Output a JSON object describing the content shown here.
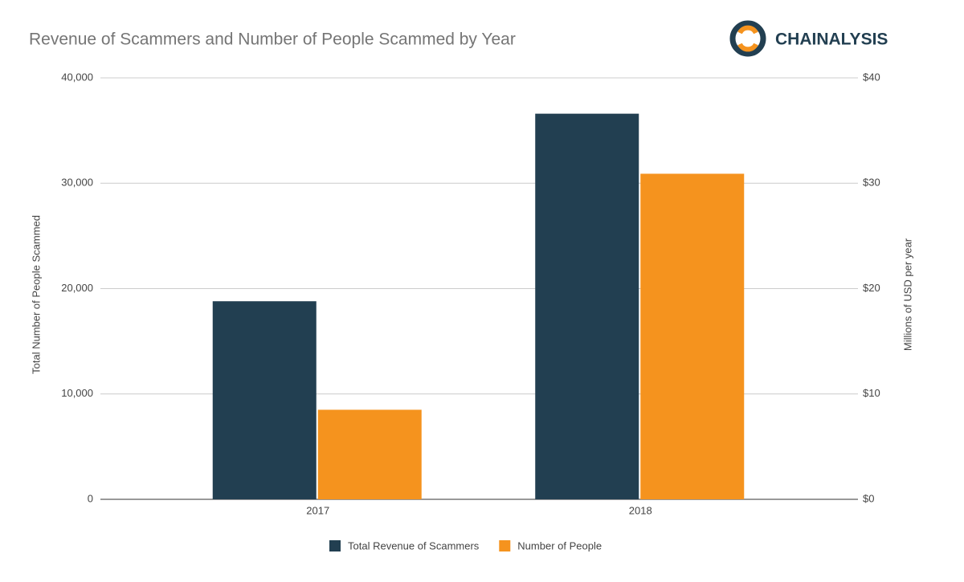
{
  "brand": "CHAINALYSIS",
  "chart_data": {
    "type": "bar",
    "title": "Revenue of Scammers and Number of People Scammed by Year",
    "y_label": "Total Number of People Scammed",
    "y2_label": "Millions of USD per year",
    "categories": [
      "2017",
      "2018"
    ],
    "series": [
      {
        "name": "Total Revenue of Scammers",
        "color": "#223f51",
        "axis": "y2",
        "values": [
          18.8,
          36.6
        ]
      },
      {
        "name": "Number of People",
        "color": "#f5931e",
        "values": [
          8500,
          30900
        ]
      }
    ],
    "ylim": [
      0,
      40000
    ],
    "yticks": [
      0,
      {
        "value": 10000,
        "label": "10,000"
      },
      {
        "value": 20000,
        "label": "20,000"
      },
      {
        "value": 30000,
        "label": "30,000"
      },
      {
        "value": 40000,
        "label": "40,000"
      }
    ],
    "y2lim": [
      0,
      40
    ],
    "y2ticks": [
      {
        "value": 0,
        "label": "$0"
      },
      {
        "value": 10,
        "label": "$10"
      },
      {
        "value": 20,
        "label": "$20"
      },
      {
        "value": 30,
        "label": "$30"
      },
      {
        "value": 40,
        "label": "$40"
      }
    ],
    "grid": true,
    "legend": "bottom"
  }
}
